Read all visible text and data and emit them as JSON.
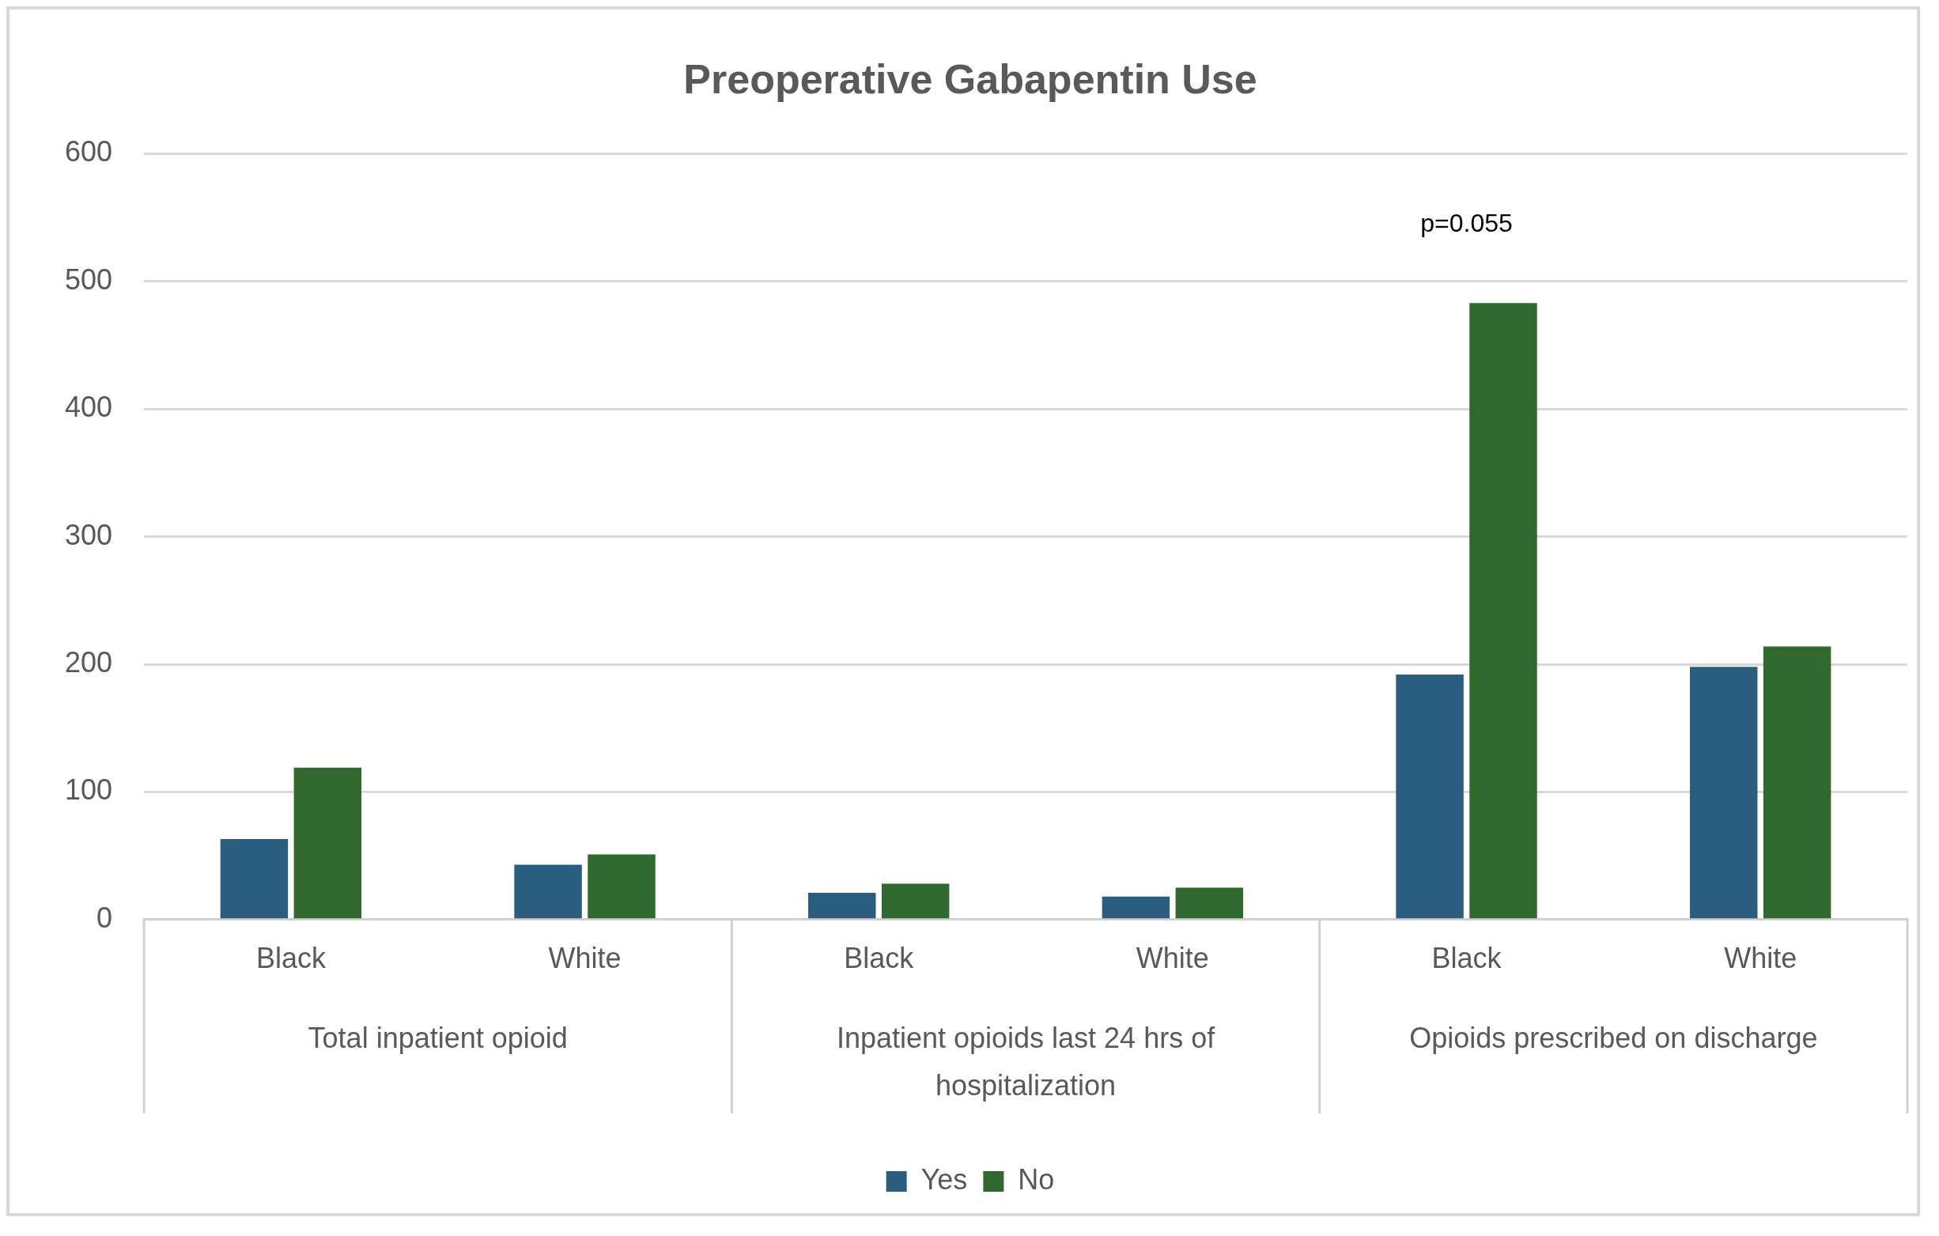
{
  "chart_data": {
    "type": "bar",
    "title": "Preoperative Gabapentin Use",
    "categories": [
      "Black",
      "White",
      "Black",
      "White",
      "Black",
      "White"
    ],
    "series": [
      {
        "name": "Yes",
        "color": "#2a5e80",
        "values": [
          63,
          43,
          21,
          18,
          192,
          198
        ]
      },
      {
        "name": "No",
        "color": "#30692e",
        "values": [
          119,
          51,
          28,
          25,
          483,
          214
        ]
      }
    ],
    "ylim": [
      0,
      600
    ],
    "yticks": [
      0,
      100,
      200,
      300,
      400,
      500,
      600
    ],
    "grid": "y",
    "legend": "bottom",
    "annotations": [
      "Total inpatient opioid",
      "Inpatient opioids last 24 hrs of hospitalization",
      "Opioids prescribed on discharge",
      "p=0.055"
    ]
  }
}
